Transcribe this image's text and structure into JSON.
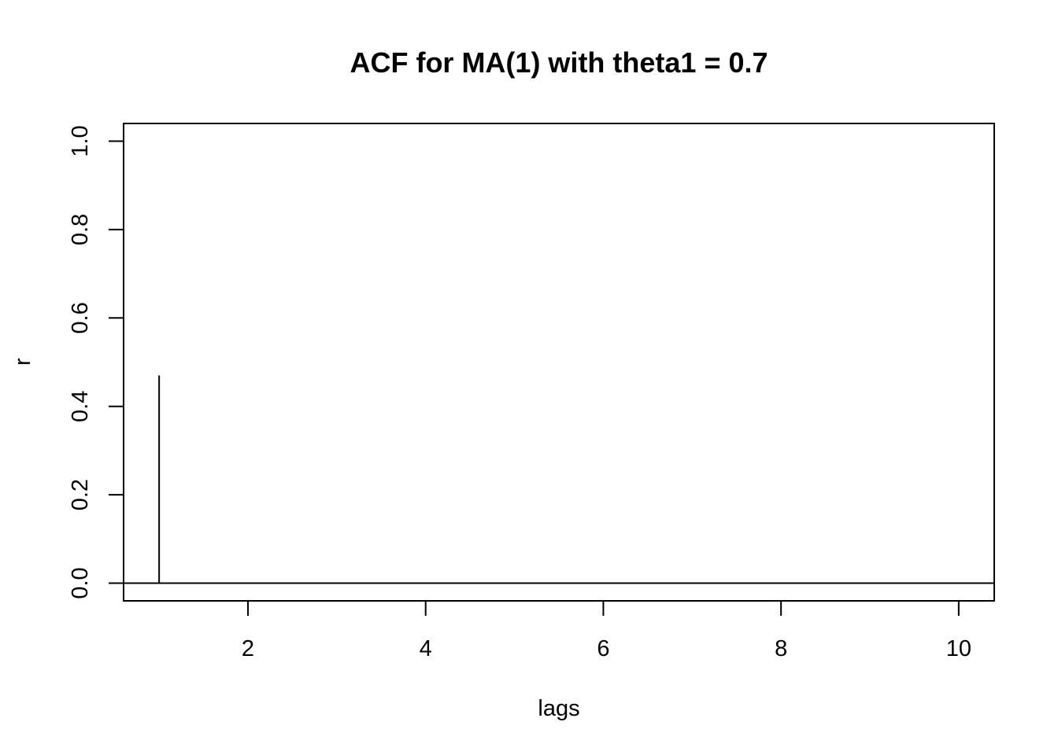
{
  "chart_data": {
    "type": "bar",
    "title": "ACF for MA(1) with theta1 = 0.7",
    "xlabel": "lags",
    "ylabel": "r",
    "x": [
      1,
      2,
      3,
      4,
      5,
      6,
      7,
      8,
      9,
      10
    ],
    "values": [
      0.47,
      0,
      0,
      0,
      0,
      0,
      0,
      0,
      0,
      0
    ],
    "xlim": [
      0.6,
      10.4
    ],
    "ylim": [
      -0.04,
      1.04
    ],
    "x_ticks": [
      2,
      4,
      6,
      8,
      10
    ],
    "y_ticks": [
      0.0,
      0.2,
      0.4,
      0.6,
      0.8,
      1.0
    ],
    "x_tick_labels": [
      "2",
      "4",
      "6",
      "8",
      "10"
    ],
    "y_tick_labels": [
      "0.0",
      "0.2",
      "0.4",
      "0.6",
      "0.8",
      "1.0"
    ],
    "zero_line": true,
    "grid": false,
    "legend": "none",
    "colors": {
      "line": "#000000",
      "background": "#ffffff"
    }
  }
}
